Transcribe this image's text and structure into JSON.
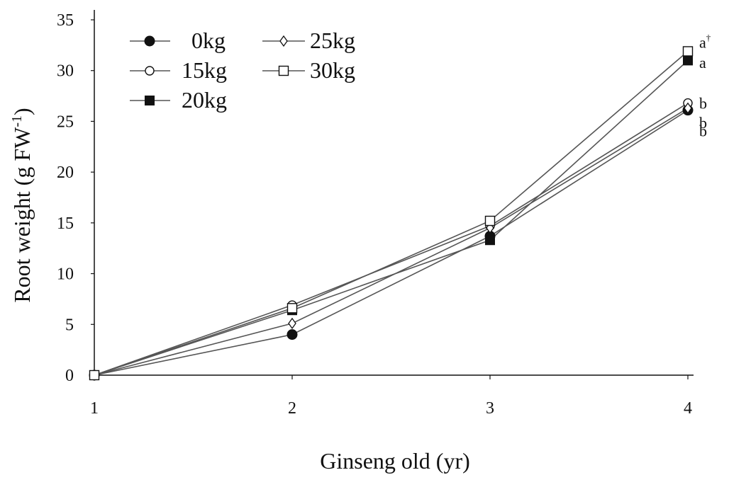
{
  "chart_data": {
    "type": "line",
    "title": "",
    "xlabel": "Ginseng old (yr)",
    "ylabel": "Root weight (g FW",
    "ylabel_sup": "-1",
    "ylabel_close": ")",
    "x": [
      1,
      2,
      3,
      4
    ],
    "x_tick_labels": [
      "1",
      "2",
      "3",
      "4"
    ],
    "ylim": [
      0,
      35
    ],
    "y_ticks": [
      0,
      5,
      10,
      15,
      20,
      25,
      30,
      35
    ],
    "grid": false,
    "legend_position": "top-left",
    "series": [
      {
        "name": "0kg",
        "marker": "filled-circle",
        "values": [
          0,
          4,
          13.7,
          26.1
        ]
      },
      {
        "name": "15kg",
        "marker": "open-circle",
        "values": [
          0,
          6.9,
          14.7,
          26.8
        ]
      },
      {
        "name": "20kg",
        "marker": "filled-square",
        "values": [
          0,
          6.4,
          13.3,
          31
        ]
      },
      {
        "name": "25kg",
        "marker": "open-diamond",
        "values": [
          0,
          5.1,
          14.5,
          26.3
        ]
      },
      {
        "name": "30kg",
        "marker": "open-square",
        "values": [
          0,
          6.6,
          15.2,
          31.9
        ]
      }
    ],
    "annotations": [
      {
        "text": "a",
        "sup": "†",
        "x": 4,
        "y": 32.8
      },
      {
        "text": "a",
        "x": 4,
        "y": 30.8
      },
      {
        "text": "b",
        "x": 4,
        "y": 26.8
      },
      {
        "text": "b",
        "x": 4,
        "y": 24.9
      },
      {
        "text": "b",
        "x": 4,
        "y": 24.1
      }
    ],
    "colors": {
      "line": "#555555",
      "marker": "#111111",
      "axis": "#111111"
    }
  }
}
